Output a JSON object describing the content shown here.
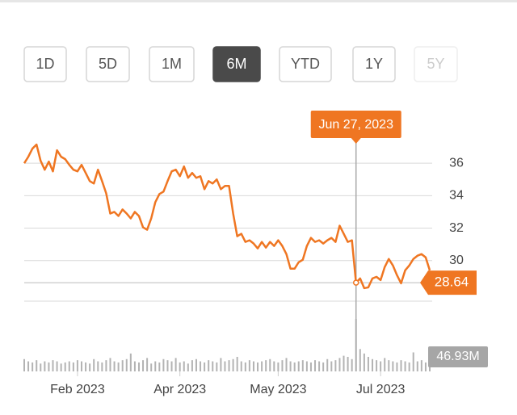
{
  "range_buttons": {
    "labels": [
      "1D",
      "5D",
      "1M",
      "6M",
      "YTD",
      "1Y",
      "5Y"
    ],
    "selected": "6M"
  },
  "chart_data": {
    "type": "line",
    "color": "#ef7622",
    "categories": [
      null,
      null,
      null,
      null,
      null,
      null,
      null,
      null,
      null,
      null,
      null,
      null,
      null,
      "Feb 2023",
      null,
      null,
      null,
      null,
      null,
      null,
      null,
      null,
      null,
      null,
      null,
      null,
      null,
      null,
      null,
      null,
      null,
      null,
      null,
      null,
      null,
      null,
      null,
      null,
      "Apr 2023",
      null,
      null,
      null,
      null,
      null,
      null,
      null,
      null,
      null,
      null,
      null,
      null,
      null,
      null,
      null,
      null,
      null,
      null,
      null,
      null,
      null,
      null,
      null,
      "May 2023",
      null,
      null,
      null,
      null,
      null,
      null,
      null,
      null,
      null,
      null,
      null,
      null,
      null,
      null,
      null,
      null,
      null,
      null,
      null,
      null,
      null,
      null,
      null,
      null,
      "Jul 2023",
      null,
      null,
      null,
      null,
      null,
      null,
      null,
      null,
      null,
      null,
      null,
      null
    ],
    "values": [
      36.0,
      36.4,
      36.9,
      37.15,
      36.15,
      35.6,
      36.1,
      35.5,
      36.8,
      36.4,
      36.25,
      35.9,
      35.6,
      35.5,
      35.9,
      35.4,
      34.9,
      34.75,
      35.6,
      34.9,
      34.15,
      32.9,
      33.0,
      32.75,
      33.15,
      32.9,
      32.6,
      33.0,
      32.75,
      32.05,
      31.9,
      32.6,
      33.6,
      34.1,
      34.25,
      34.9,
      35.5,
      35.6,
      35.2,
      35.8,
      35.1,
      35.4,
      35.1,
      35.2,
      34.4,
      34.9,
      34.75,
      35.0,
      34.4,
      34.6,
      34.6,
      32.9,
      31.5,
      31.65,
      31.15,
      31.25,
      31.05,
      30.75,
      31.15,
      30.8,
      31.15,
      30.9,
      31.25,
      30.9,
      30.4,
      29.5,
      29.5,
      29.9,
      30.05,
      30.9,
      31.4,
      31.15,
      31.25,
      31.05,
      31.25,
      31.4,
      31.15,
      32.15,
      31.65,
      31.15,
      31.25,
      28.64,
      28.9,
      28.3,
      28.35,
      28.9,
      29.0,
      28.8,
      29.6,
      30.1,
      29.7,
      29.1,
      28.6,
      29.4,
      29.7,
      30.1,
      30.3,
      30.4,
      30.2,
      29.4
    ],
    "ylim": [
      27.5,
      37.6
    ],
    "yticks": [
      30,
      32,
      34,
      36
    ],
    "volume": {
      "color": "#b3b3b3",
      "values": [
        11,
        9,
        8,
        10,
        7,
        9,
        8,
        10,
        9,
        7,
        8,
        9,
        8,
        10,
        9,
        8,
        7,
        11,
        9,
        8,
        10,
        12,
        9,
        8,
        10,
        11,
        16,
        9,
        8,
        10,
        12,
        7,
        9,
        8,
        11,
        10,
        9,
        12,
        8,
        9,
        7,
        10,
        11,
        9,
        8,
        10,
        9,
        8,
        12,
        9,
        10,
        11,
        13,
        9,
        8,
        10,
        9,
        8,
        9,
        10,
        11,
        9,
        8,
        10,
        12,
        9,
        8,
        9,
        10,
        9,
        8,
        10,
        9,
        8,
        11,
        9,
        10,
        12,
        14,
        13,
        11,
        46.93,
        20,
        16,
        13,
        11,
        10,
        9,
        12,
        10,
        9,
        8,
        10,
        9,
        8,
        17,
        9,
        10,
        8,
        9
      ],
      "max_label": {
        "value": 46.93,
        "label": "46.93M"
      }
    },
    "tooltip": {
      "label": "Jun 27, 2023",
      "value": 28.64
    }
  }
}
